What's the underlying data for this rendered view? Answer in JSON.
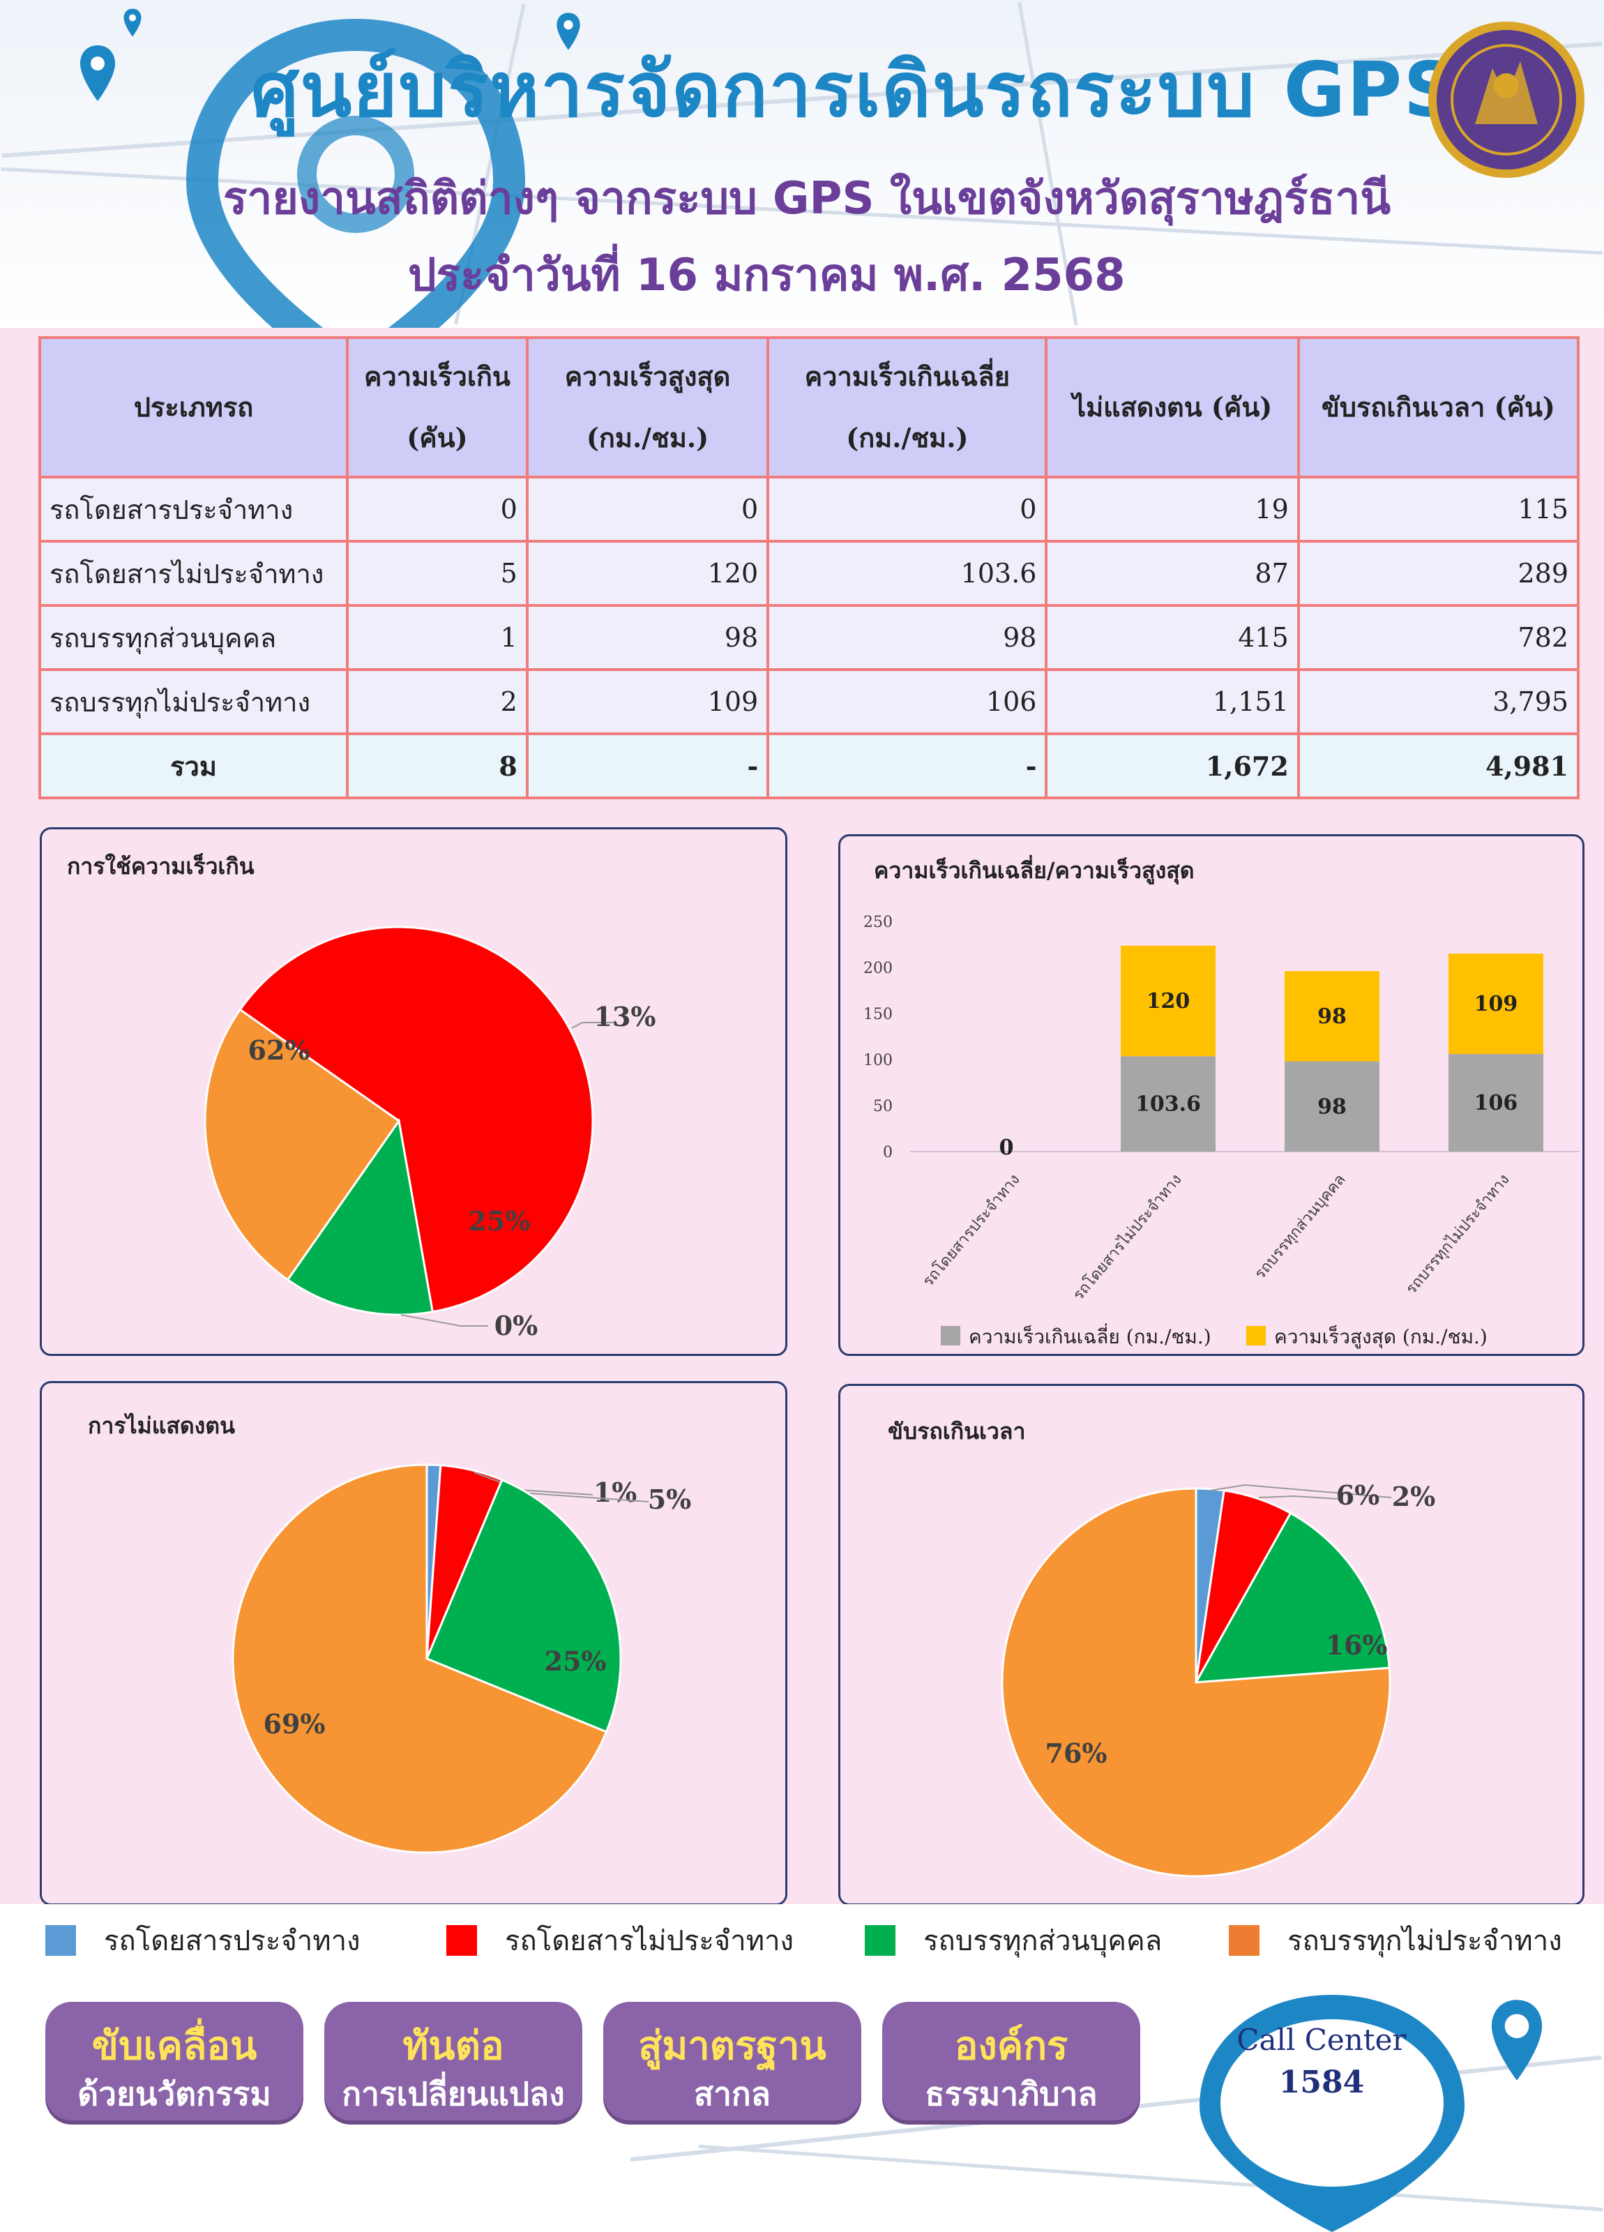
{
  "header": {
    "title": "ศูนย์บริหารจัดการเดินรถระบบ GPS",
    "subtitle": "รายงานสถิติต่างๆ จากระบบ GPS ในเขตจังหวัดสุราษฎร์ธานี",
    "date": "ประจำวันที่   16   มกราคม พ.ศ. 2568"
  },
  "table": {
    "headers": [
      "ประเภทรถ",
      "ความเร็วเกิน (คัน)",
      "ความเร็วสูงสุด (กม./ชม.)",
      "ความเร็วเกินเฉลี่ย (กม./ชม.)",
      "ไม่แสดงตน (คัน)",
      "ขับรถเกินเวลา (คัน)"
    ],
    "rows": [
      [
        "รถโดยสารประจำทาง",
        "0",
        "0",
        "0",
        "19",
        "115"
      ],
      [
        "รถโดยสารไม่ประจำทาง",
        "5",
        "120",
        "103.6",
        "87",
        "289"
      ],
      [
        "รถบรรทุกส่วนบุคคล",
        "1",
        "98",
        "98",
        "415",
        "782"
      ],
      [
        "รถบรรทุกไม่ประจำทาง",
        "2",
        "109",
        "106",
        "1,151",
        "3,795"
      ]
    ],
    "total": [
      "รวม",
      "8",
      "-",
      "-",
      "1,672",
      "4,981"
    ]
  },
  "chart_data": [
    {
      "type": "pie",
      "title": "การใช้ความเร็วเกิน",
      "categories": [
        "รถโดยสารประจำทาง",
        "รถโดยสารไม่ประจำทาง",
        "รถบรรทุกส่วนบุคคล",
        "รถบรรทุกไม่ประจำทาง"
      ],
      "values": [
        0,
        5,
        1,
        2
      ],
      "labels": [
        "0%",
        "62%",
        "13%",
        "25%"
      ]
    },
    {
      "type": "bar",
      "stacked": true,
      "title": "ความเร็วเกินเฉลี่ย/ความเร็วสูงสุด",
      "categories": [
        "รถโดยสารประจำทาง",
        "รถโดยสารไม่ประจำทาง",
        "รถบรรทุกส่วนบุคคล",
        "รถบรรทุกไม่ประจำทาง"
      ],
      "series": [
        {
          "name": "ความเร็วเกินเฉลี่ย (กม./ชม.)",
          "values": [
            0,
            103.6,
            98,
            106
          ]
        },
        {
          "name": "ความเร็วสูงสุด (กม./ชม.)",
          "values": [
            0,
            120,
            98,
            109
          ]
        }
      ],
      "data_labels": [
        [
          "0",
          "103.6",
          "98",
          "106"
        ],
        [
          "0",
          "120",
          "98",
          "109"
        ]
      ],
      "ylim": [
        0,
        250
      ],
      "yticks": [
        "0",
        "50",
        "100",
        "150",
        "200",
        "250"
      ],
      "legend": "bottom"
    },
    {
      "type": "pie",
      "title": "การไม่แสดงตน",
      "categories": [
        "รถโดยสารประจำทาง",
        "รถโดยสารไม่ประจำทาง",
        "รถบรรทุกส่วนบุคคล",
        "รถบรรทุกไม่ประจำทาง"
      ],
      "values": [
        19,
        87,
        415,
        1151
      ],
      "labels": [
        "1%",
        "5%",
        "25%",
        "69%"
      ]
    },
    {
      "type": "pie",
      "title": "ขับรถเกินเวลา",
      "categories": [
        "รถโดยสารประจำทาง",
        "รถโดยสารไม่ประจำทาง",
        "รถบรรทุกส่วนบุคคล",
        "รถบรรทุกไม่ประจำทาง"
      ],
      "values": [
        115,
        289,
        782,
        3795
      ],
      "labels": [
        "2%",
        "6%",
        "16%",
        "76%"
      ]
    }
  ],
  "colors": {
    "bus_fixed": "#5b9bd5",
    "bus_nonfixed": "#ff0000",
    "truck_private": "#00b050",
    "truck_nonfixed": "#f79433",
    "avg_speed": "#a6a6a6",
    "max_speed": "#ffc000"
  },
  "legend": [
    "รถโดยสารประจำทาง",
    "รถโดยสารไม่ประจำทาง",
    "รถบรรทุกส่วนบุคคล",
    "รถบรรทุกไม่ประจำทาง"
  ],
  "badges": [
    {
      "l1": "ขับเคลื่อน",
      "l2": "ด้วยนวัตกรรม"
    },
    {
      "l1": "ทันต่อ",
      "l2": "การเปลี่ยนแปลง"
    },
    {
      "l1": "สู่มาตรฐาน",
      "l2": "สากล"
    },
    {
      "l1": "องค์กร",
      "l2": "ธรรมาภิบาล"
    }
  ],
  "call_center": {
    "label": "Call Center",
    "number": "1584"
  }
}
